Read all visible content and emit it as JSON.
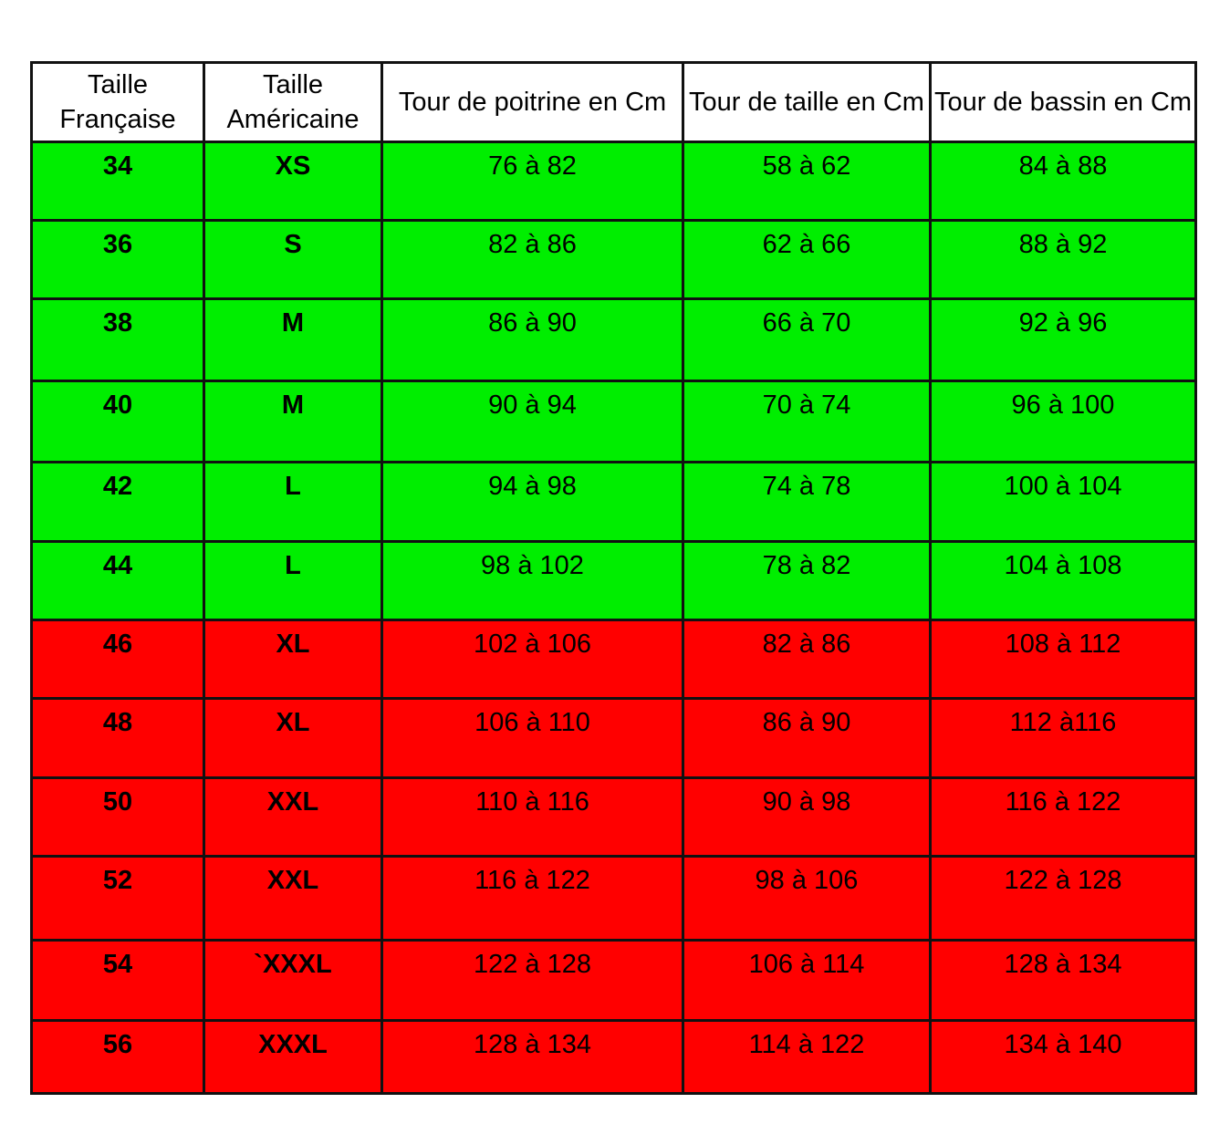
{
  "table": {
    "headers": [
      "Taille Française",
      "Taille Américaine",
      "Tour de poitrine en Cm",
      "Tour de taille en Cm",
      "Tour de bassin en Cm"
    ],
    "colors": {
      "green": "#00ee00",
      "red": "#ff0000"
    },
    "rows": [
      {
        "fr": "34",
        "us": "XS",
        "poitrine": "76 à 82",
        "taille": "58 à 62",
        "bassin": "84 à 88",
        "color": "green"
      },
      {
        "fr": "36",
        "us": "S",
        "poitrine": "82 à 86",
        "taille": "62 à 66",
        "bassin": "88 à 92",
        "color": "green"
      },
      {
        "fr": "38",
        "us": "M",
        "poitrine": "86 à 90",
        "taille": "66 à 70",
        "bassin": "92 à 96",
        "color": "green"
      },
      {
        "fr": "40",
        "us": "M",
        "poitrine": "90 à 94",
        "taille": "70 à 74",
        "bassin": "96 à 100",
        "color": "green"
      },
      {
        "fr": "42",
        "us": "L",
        "poitrine": "94 à 98",
        "taille": "74 à 78",
        "bassin": "100 à 104",
        "color": "green"
      },
      {
        "fr": "44",
        "us": "L",
        "poitrine": "98 à 102",
        "taille": "78 à 82",
        "bassin": "104 à 108",
        "color": "green"
      },
      {
        "fr": "46",
        "us": "XL",
        "poitrine": "102 à 106",
        "taille": "82 à 86",
        "bassin": "108 à 112",
        "color": "red"
      },
      {
        "fr": "48",
        "us": "XL",
        "poitrine": "106 à 110",
        "taille": "86 à 90",
        "bassin": "112 à116",
        "color": "red"
      },
      {
        "fr": "50",
        "us": "XXL",
        "poitrine": "110 à 116",
        "taille": "90 à 98",
        "bassin": "116 à 122",
        "color": "red"
      },
      {
        "fr": "52",
        "us": "XXL",
        "poitrine": "116 à 122",
        "taille": "98 à 106",
        "bassin": "122 à 128",
        "color": "red"
      },
      {
        "fr": "54",
        "us": "`XXXL",
        "poitrine": "122 à 128",
        "taille": "106 à 114",
        "bassin": "128 à 134",
        "color": "red"
      },
      {
        "fr": "56",
        "us": "XXXL",
        "poitrine": "128 à 134",
        "taille": "114 à 122",
        "bassin": "134 à 140",
        "color": "red"
      }
    ]
  }
}
